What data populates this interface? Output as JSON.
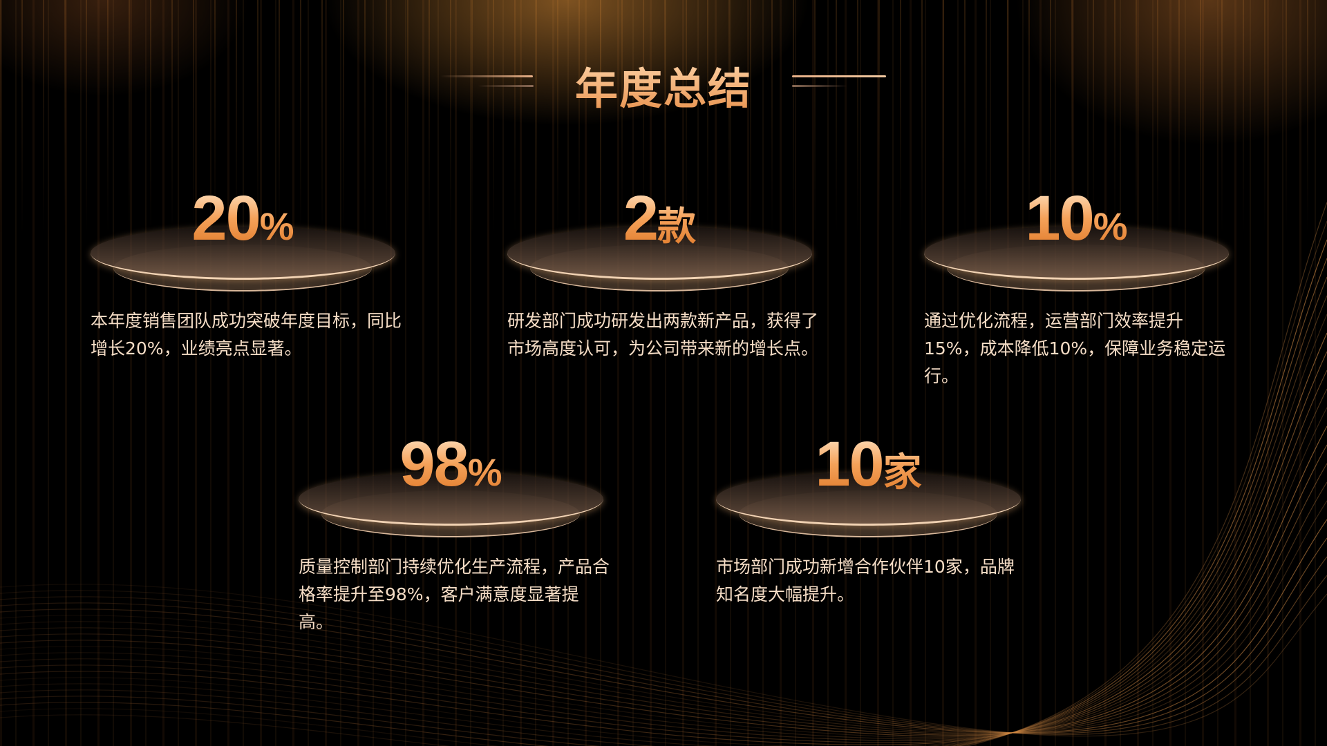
{
  "title": "年度总结",
  "colors": {
    "accent": "#f5a25a",
    "text": "#f5ddc6",
    "background": "#000000"
  },
  "cards": [
    {
      "value": "20",
      "unit": "%",
      "description": "本年度销售团队成功突破年度目标，同比增长20%，业绩亮点显著。"
    },
    {
      "value": "2",
      "unit": "款",
      "description": "研发部门成功研发出两款新产品，获得了市场高度认可，为公司带来新的增长点。"
    },
    {
      "value": "10",
      "unit": "%",
      "description": "通过优化流程，运营部门效率提升15%，成本降低10%，保障业务稳定运行。"
    },
    {
      "value": "98",
      "unit": "%",
      "description": "质量控制部门持续优化生产流程，产品合格率提升至98%，客户满意度显著提高。"
    },
    {
      "value": "10",
      "unit": "家",
      "description": "市场部门成功新增合作伙伴10家，品牌知名度大幅提升。"
    }
  ]
}
